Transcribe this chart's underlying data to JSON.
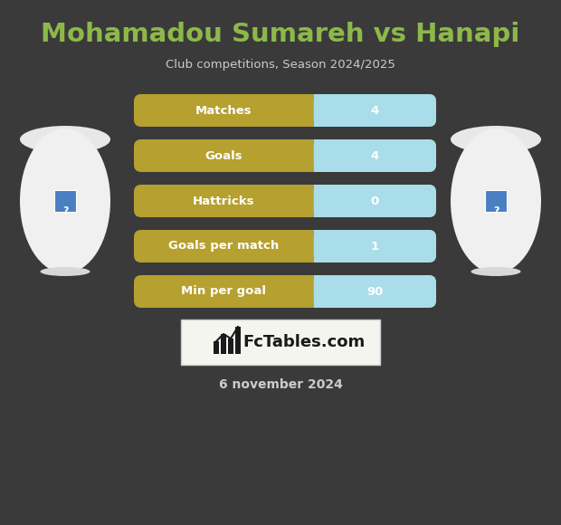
{
  "title": "Mohamadou Sumareh vs Hanapi",
  "subtitle": "Club competitions, Season 2024/2025",
  "date_text": "6 november 2024",
  "background_color": "#3a3a3a",
  "title_color": "#8db84a",
  "subtitle_color": "#cccccc",
  "date_color": "#cccccc",
  "stats": [
    {
      "label": "Matches",
      "value": "4"
    },
    {
      "label": "Goals",
      "value": "4"
    },
    {
      "label": "Hattricks",
      "value": "0"
    },
    {
      "label": "Goals per match",
      "value": "1"
    },
    {
      "label": "Min per goal",
      "value": "90"
    }
  ],
  "bar_label_color": "#ffffff",
  "bar_value_color": "#ffffff",
  "bar_left_color": "#b5a030",
  "bar_right_color": "#a8dde9",
  "logo_box_color": "#f5f5f0",
  "logo_text": "FcTables.com",
  "logo_text_color": "#1a1a1a",
  "player_body_color": "#ffffff",
  "player_shadow_color": "#c8c8c8"
}
